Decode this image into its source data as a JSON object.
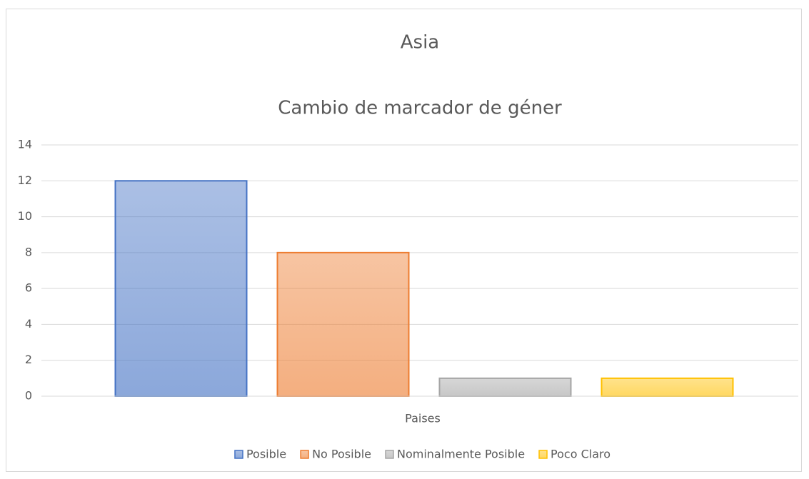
{
  "chart_data": {
    "type": "bar",
    "title": "Asia",
    "subtitle": "Cambio de marcador de géner",
    "categories": [
      "Paises"
    ],
    "series": [
      {
        "name": "Posible",
        "color": "#4472c4",
        "values": [
          12
        ]
      },
      {
        "name": "No Posible",
        "color": "#ed7d31",
        "values": [
          8
        ]
      },
      {
        "name": "Nominalmente Posible",
        "color": "#a5a5a5",
        "values": [
          1
        ]
      },
      {
        "name": "Poco Claro",
        "color": "#ffc000",
        "values": [
          1
        ]
      }
    ],
    "ylim": [
      0,
      14
    ],
    "yticks": [
      0,
      2,
      4,
      6,
      8,
      10,
      12,
      14
    ],
    "grid": true,
    "legend": "bottom"
  }
}
